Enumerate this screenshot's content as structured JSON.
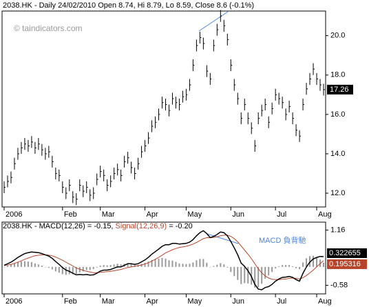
{
  "chart_data": [
    {
      "type": "ohlc",
      "title": "2038.HK - Daily 24/02/2010 Open 8.74, Hi 8.79, Lo 8.59, Close 8.6 (-0.1%)",
      "watermark": "© taindicators.com",
      "categories": [
        "2006",
        null,
        null,
        null,
        null,
        null,
        null,
        null,
        null,
        null,
        null,
        null,
        null,
        null,
        null,
        null,
        null,
        "Feb",
        null,
        null,
        null,
        null,
        null,
        null,
        null,
        null,
        null,
        null,
        "Mar",
        null,
        null,
        null,
        null,
        null,
        null,
        null,
        null,
        null,
        null,
        null,
        null,
        "Apr",
        null,
        null,
        null,
        null,
        null,
        null,
        null,
        null,
        null,
        null,
        null,
        "May",
        null,
        null,
        null,
        null,
        null,
        null,
        null,
        null,
        null,
        null,
        null,
        null,
        "Jun",
        null,
        null,
        null,
        null,
        null,
        null,
        null,
        null,
        null,
        null,
        null,
        null,
        "Jul",
        null,
        null,
        null,
        null,
        null,
        null,
        null,
        null,
        null,
        null,
        null,
        "Aug",
        null,
        null
      ],
      "high": [
        12.6,
        12.9,
        13.1,
        13.8,
        14.3,
        14.6,
        14.8,
        14.7,
        14.9,
        14.6,
        14.8,
        14.5,
        14.3,
        14.4,
        13.9,
        13.3,
        13.2,
        12.6,
        12.3,
        12.7,
        12.1,
        12.0,
        12.7,
        12.4,
        12.6,
        12.2,
        12.3,
        13.0,
        13.4,
        13.2,
        12.7,
        12.9,
        13.3,
        13.5,
        13.2,
        13.9,
        14.1,
        13.6,
        13.3,
        13.8,
        14.4,
        14.7,
        15.1,
        15.7,
        15.9,
        16.3,
        16.9,
        16.8,
        16.5,
        17.1,
        16.9,
        16.8,
        17.2,
        17.3,
        17.8,
        18.8,
        19.8,
        20.2,
        19.9,
        18.5,
        18.1,
        19.8,
        20.6,
        21.3,
        20.8,
        20.1,
        18.8,
        17.8,
        17.1,
        16.1,
        16.8,
        16.1,
        15.6,
        14.7,
        16.1,
        16.5,
        16.8,
        15.9,
        16.6,
        17.3,
        17.1,
        16.9,
        16.3,
        16.7,
        16.1,
        15.5,
        15.2,
        16.8,
        17.6,
        18.1,
        18.6,
        18.1,
        17.8,
        17.56
      ],
      "low": [
        12.0,
        12.3,
        12.5,
        13.2,
        13.7,
        14.0,
        14.2,
        14.1,
        14.3,
        14.0,
        14.2,
        13.9,
        13.7,
        13.8,
        13.3,
        12.7,
        12.6,
        12.0,
        11.7,
        12.1,
        11.5,
        11.4,
        12.1,
        11.8,
        12.0,
        11.6,
        11.7,
        12.4,
        12.8,
        12.6,
        12.1,
        12.3,
        12.7,
        12.9,
        12.6,
        13.3,
        13.5,
        13.0,
        12.7,
        13.2,
        13.8,
        14.1,
        14.5,
        15.1,
        15.3,
        15.7,
        16.3,
        16.2,
        15.9,
        16.5,
        16.3,
        16.2,
        16.6,
        16.7,
        17.2,
        18.2,
        19.2,
        19.6,
        19.3,
        17.9,
        17.5,
        19.2,
        20.0,
        20.7,
        20.2,
        19.5,
        18.2,
        17.2,
        16.5,
        15.5,
        16.2,
        15.5,
        15.0,
        14.1,
        15.5,
        15.9,
        16.2,
        15.3,
        16.0,
        16.7,
        16.5,
        16.3,
        15.7,
        16.1,
        15.5,
        14.9,
        14.6,
        16.2,
        17.0,
        17.5,
        18.0,
        17.5,
        17.2,
        16.96
      ],
      "close": [
        12.3,
        12.6,
        12.8,
        13.5,
        14.0,
        14.3,
        14.5,
        14.4,
        14.6,
        14.3,
        14.5,
        14.2,
        14.0,
        14.1,
        13.6,
        13.0,
        12.9,
        12.3,
        12.0,
        12.4,
        11.8,
        11.7,
        12.4,
        12.1,
        12.3,
        11.9,
        12.0,
        12.7,
        13.1,
        12.9,
        12.4,
        12.6,
        13.0,
        13.2,
        12.9,
        13.6,
        13.8,
        13.3,
        13.0,
        13.5,
        14.1,
        14.4,
        14.8,
        15.4,
        15.6,
        16.0,
        16.6,
        16.5,
        16.2,
        16.8,
        16.6,
        16.5,
        16.9,
        17.0,
        17.5,
        18.5,
        19.5,
        19.9,
        19.6,
        18.2,
        17.8,
        19.5,
        20.3,
        21.0,
        20.5,
        19.8,
        18.5,
        17.5,
        16.8,
        15.8,
        16.5,
        15.8,
        15.3,
        14.4,
        15.8,
        16.2,
        16.5,
        15.6,
        16.3,
        17.0,
        16.8,
        16.6,
        16.0,
        16.4,
        15.8,
        15.2,
        14.9,
        16.5,
        17.3,
        17.8,
        18.3,
        17.8,
        17.5,
        17.26
      ],
      "color": "#000000",
      "ylim": [
        11.3,
        21.25
      ],
      "yticks": [
        {
          "value": 12,
          "label": "12.0"
        },
        {
          "value": 14,
          "label": "14.0"
        },
        {
          "value": 16,
          "label": "16.0"
        },
        {
          "value": 18,
          "label": "18.0"
        },
        {
          "value": 20,
          "label": "20.0"
        }
      ]
    },
    {
      "type": "macd",
      "title": "2038.HK - MACD(12,26) = -0.15, ",
      "signal_title": "Signal(12,26,9)",
      "title_end": " = -0.20",
      "annotation": "MACD 負背馳",
      "macd": [
        0.05,
        0.1,
        0.15,
        0.22,
        0.3,
        0.36,
        0.42,
        0.45,
        0.47,
        0.46,
        0.45,
        0.42,
        0.38,
        0.34,
        0.27,
        0.17,
        0.08,
        -0.02,
        -0.1,
        -0.14,
        -0.2,
        -0.25,
        -0.24,
        -0.25,
        -0.24,
        -0.26,
        -0.25,
        -0.2,
        -0.13,
        -0.1,
        -0.1,
        -0.08,
        -0.04,
        0.0,
        0.0,
        0.05,
        0.1,
        0.1,
        0.08,
        0.1,
        0.16,
        0.22,
        0.3,
        0.4,
        0.48,
        0.56,
        0.65,
        0.7,
        0.7,
        0.74,
        0.74,
        0.72,
        0.73,
        0.74,
        0.78,
        0.86,
        0.98,
        1.08,
        1.14,
        1.05,
        0.92,
        0.96,
        1.02,
        1.1,
        1.08,
        0.98,
        0.8,
        0.6,
        0.38,
        0.12,
        0.02,
        -0.12,
        -0.3,
        -0.55,
        -0.7,
        -0.72,
        -0.65,
        -0.62,
        -0.55,
        -0.45,
        -0.38,
        -0.33,
        -0.32,
        -0.3,
        -0.33,
        -0.4,
        -0.45,
        -0.2,
        0.0,
        0.15,
        0.25,
        0.3,
        0.33,
        0.322655
      ],
      "signal": [
        0.05,
        0.06,
        0.08,
        0.11,
        0.15,
        0.19,
        0.24,
        0.28,
        0.32,
        0.35,
        0.37,
        0.38,
        0.38,
        0.37,
        0.35,
        0.31,
        0.26,
        0.21,
        0.15,
        0.09,
        0.03,
        -0.03,
        -0.07,
        -0.11,
        -0.14,
        -0.16,
        -0.18,
        -0.18,
        -0.17,
        -0.16,
        -0.15,
        -0.14,
        -0.12,
        -0.1,
        -0.08,
        -0.05,
        -0.02,
        0.0,
        0.02,
        0.04,
        0.06,
        0.09,
        0.13,
        0.18,
        0.24,
        0.3,
        0.37,
        0.44,
        0.49,
        0.54,
        0.58,
        0.61,
        0.63,
        0.65,
        0.68,
        0.72,
        0.77,
        0.83,
        0.89,
        0.92,
        0.92,
        0.93,
        0.95,
        0.98,
        1.0,
        1.0,
        0.96,
        0.89,
        0.79,
        0.66,
        0.53,
        0.4,
        0.26,
        0.1,
        -0.06,
        -0.19,
        -0.28,
        -0.35,
        -0.39,
        -0.4,
        -0.4,
        -0.39,
        -0.38,
        -0.36,
        -0.35,
        -0.36,
        -0.38,
        -0.34,
        -0.27,
        -0.19,
        -0.1,
        0.0,
        0.1,
        0.195316
      ],
      "histogram": [
        0,
        0.04,
        0.07,
        0.11,
        0.15,
        0.17,
        0.18,
        0.17,
        0.15,
        0.11,
        0.08,
        0.04,
        0,
        -0.03,
        -0.08,
        -0.14,
        -0.18,
        -0.23,
        -0.25,
        -0.23,
        -0.23,
        -0.22,
        -0.17,
        -0.14,
        -0.1,
        -0.1,
        -0.07,
        -0.02,
        0.04,
        0.06,
        0.05,
        0.06,
        0.08,
        0.1,
        0.08,
        0.1,
        0.12,
        0.1,
        0.06,
        0.06,
        0.1,
        0.13,
        0.17,
        0.22,
        0.24,
        0.26,
        0.28,
        0.26,
        0.21,
        0.2,
        0.16,
        0.11,
        0.1,
        0.09,
        0.1,
        0.14,
        0.21,
        0.25,
        0.25,
        0.13,
        0,
        0.03,
        0.07,
        0.12,
        0.08,
        -0.02,
        -0.16,
        -0.29,
        -0.41,
        -0.54,
        -0.51,
        -0.52,
        -0.56,
        -0.65,
        -0.64,
        -0.53,
        -0.37,
        -0.27,
        -0.16,
        -0.05,
        0.02,
        0.06,
        0.06,
        0.06,
        0.02,
        -0.04,
        -0.07,
        0.14,
        0.27,
        0.34,
        0.35,
        0.3,
        0.23,
        0.13
      ],
      "colors": {
        "macd": "#000000",
        "signal": "#b8452a",
        "histogram": "#999999",
        "annotation": "#4a86e8"
      },
      "ylim": [
        -0.85,
        1.41
      ],
      "yticks": [
        1.16,
        -0.58
      ]
    }
  ]
}
